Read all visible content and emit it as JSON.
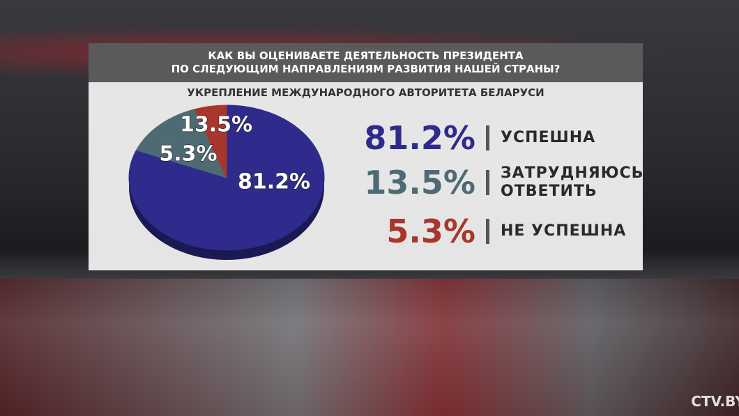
{
  "chart_data": {
    "type": "pie",
    "title": [
      "КАК ВЫ ОЦЕНИВАЕТЕ ДЕЯТЕЛЬНОСТЬ ПРЕЗИДЕНТА",
      "ПО СЛЕДУЮЩИМ НАПРАВЛЕНИЯМ РАЗВИТИЯ НАШЕЙ СТРАНЫ?"
    ],
    "subtitle": "УКРЕПЛЕНИЕ МЕЖДУНАРОДНОГО АВТОРИТЕТА БЕЛАРУСИ",
    "categories": [
      "УСПЕШНА",
      "ЗАТРУДНЯЮСЬ ОТВЕТИТЬ",
      "НЕ УСПЕШНА"
    ],
    "values": [
      81.2,
      13.5,
      5.3
    ],
    "value_labels": [
      "81.2%",
      "13.5%",
      "5.3%"
    ],
    "colors": [
      "#2e2b8c",
      "#4e6b74",
      "#a8362d"
    ]
  },
  "logo": "CTV.BY"
}
